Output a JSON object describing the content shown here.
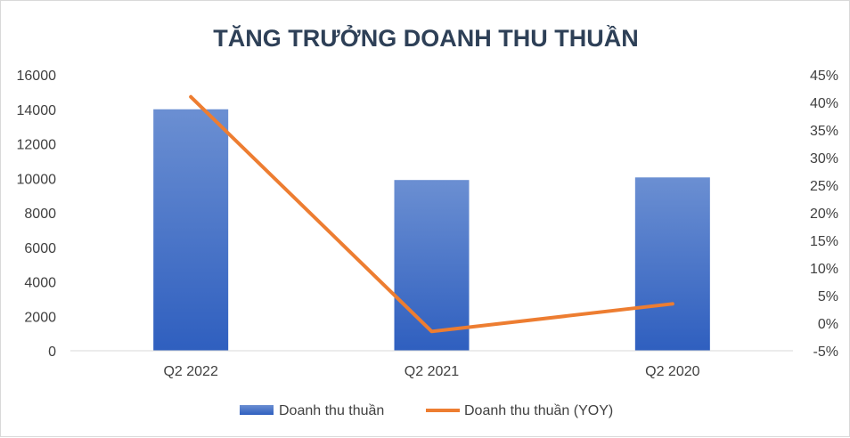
{
  "chart_data": {
    "type": "bar+line",
    "title": "TĂNG TRƯỞNG DOANH THU THUẦN",
    "categories": [
      "Q2 2022",
      "Q2 2021",
      "Q2 2020"
    ],
    "series": [
      {
        "name": "Doanh thu thuần",
        "type": "bar",
        "axis": "left",
        "values": [
          14000,
          9900,
          10050
        ],
        "color": "#4472c4"
      },
      {
        "name": "Doanh thu thuần (YOY)",
        "type": "line",
        "axis": "right",
        "values": [
          0.41,
          -0.015,
          0.035
        ],
        "color": "#ed7d31"
      }
    ],
    "y_left": {
      "min": 0,
      "max": 16000,
      "step": 2000,
      "ticks": [
        "0",
        "2000",
        "4000",
        "6000",
        "8000",
        "10000",
        "12000",
        "14000",
        "16000"
      ]
    },
    "y_right": {
      "min": -0.05,
      "max": 0.45,
      "step": 0.05,
      "ticks": [
        "-5%",
        "0%",
        "5%",
        "10%",
        "15%",
        "20%",
        "25%",
        "30%",
        "35%",
        "40%",
        "45%"
      ]
    },
    "grid": false,
    "legend_position": "bottom"
  }
}
